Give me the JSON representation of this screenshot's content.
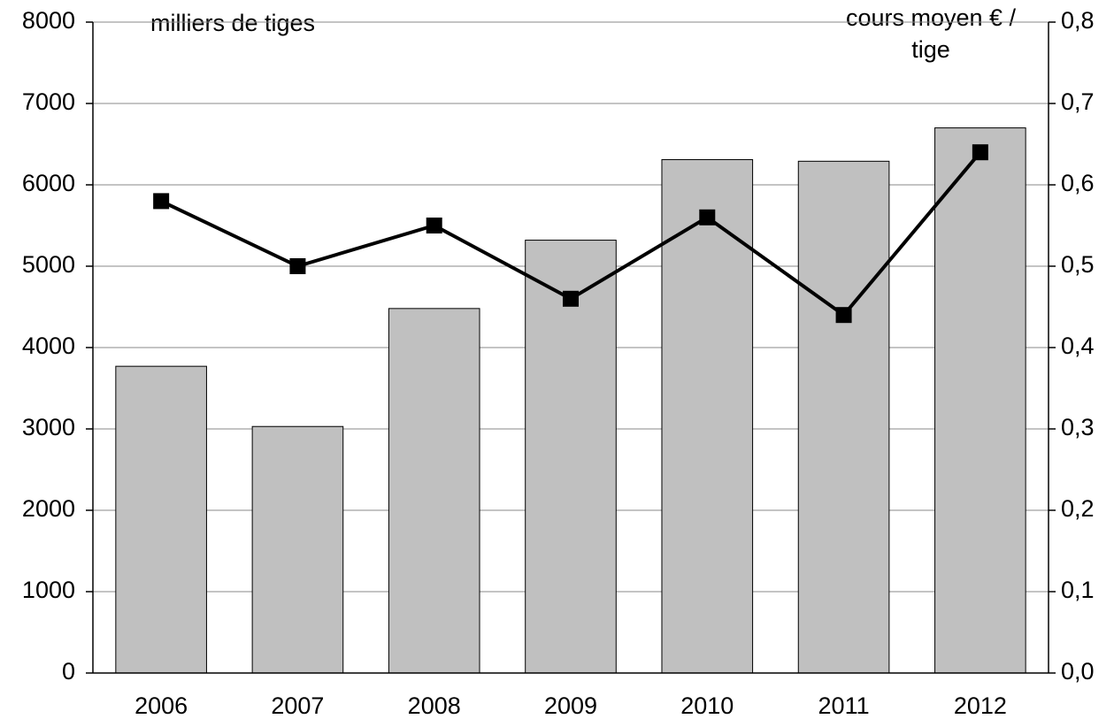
{
  "chart_data": {
    "type": "bar-line",
    "y_label": "milliers de tiges",
    "y2_label": [
      "cours moyen € /",
      "tige"
    ],
    "categories": [
      "2006",
      "2007",
      "2008",
      "2009",
      "2010",
      "2011",
      "2012"
    ],
    "series": [
      {
        "type": "bar",
        "color": "#c0c0c0",
        "axis": "y",
        "values": [
          3770,
          3030,
          4480,
          5320,
          6310,
          6290,
          6700
        ]
      },
      {
        "type": "line",
        "color": "#000000",
        "axis": "y2",
        "values": [
          0.58,
          0.5,
          0.55,
          0.46,
          0.56,
          0.44,
          0.64
        ]
      }
    ],
    "ylim": [
      0,
      8000
    ],
    "yticks": [
      0,
      1000,
      2000,
      3000,
      4000,
      5000,
      6000,
      7000,
      8000
    ],
    "y2lim": [
      0,
      0.8
    ],
    "y2ticks": [
      {
        "value": 0,
        "label": "0,0"
      },
      {
        "value": 0.1,
        "label": "0,1"
      },
      {
        "value": 0.2,
        "label": "0,2"
      },
      {
        "value": 0.3,
        "label": "0,3"
      },
      {
        "value": 0.4,
        "label": "0,4"
      },
      {
        "value": 0.5,
        "label": "0,5"
      },
      {
        "value": 0.6,
        "label": "0,6"
      },
      {
        "value": 0.7,
        "label": "0,7"
      },
      {
        "value": 0.8,
        "label": "0,8"
      }
    ],
    "grid": true
  }
}
